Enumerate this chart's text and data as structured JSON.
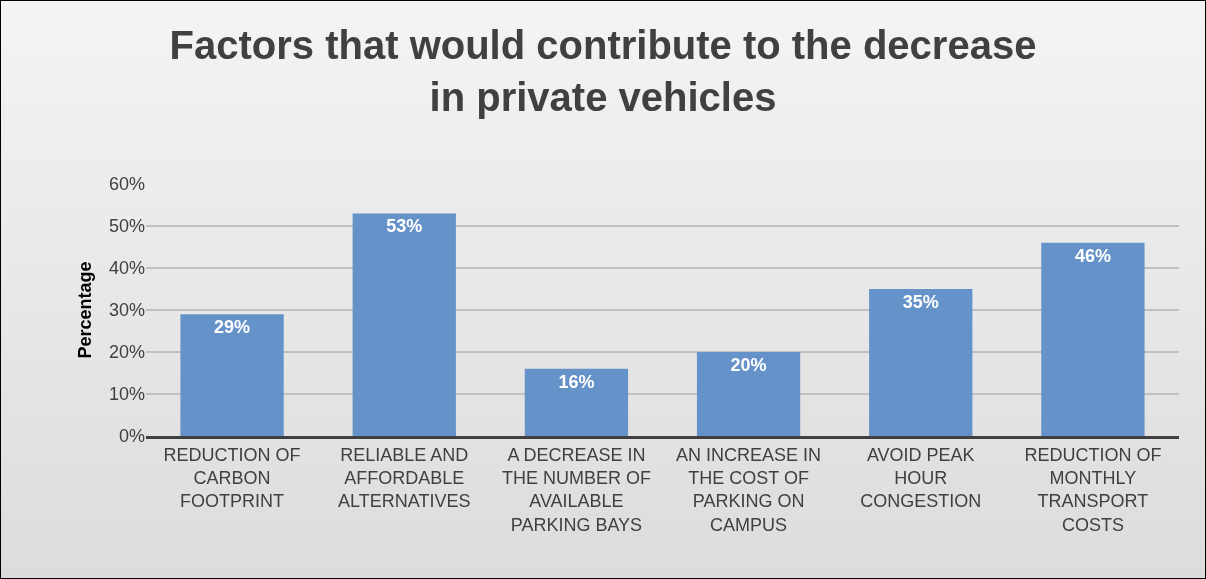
{
  "chart_data": {
    "type": "bar",
    "title": "Factors that would contribute to the decrease in private vehicles",
    "ylabel": "Percentage",
    "categories": [
      "REDUCTION OF CARBON FOOTPRINT",
      "RELIABLE AND AFFORDABLE ALTERNATIVES",
      "A DECREASE IN THE NUMBER OF AVAILABLE PARKING BAYS",
      "AN INCREASE IN THE COST OF PARKING ON CAMPUS",
      "AVOID PEAK HOUR CONGESTION",
      "REDUCTION OF MONTHLY TRANSPORT COSTS"
    ],
    "values": [
      29,
      53,
      16,
      20,
      35,
      46
    ],
    "value_labels": [
      "29%",
      "53%",
      "16%",
      "20%",
      "35%",
      "46%"
    ],
    "color": "#6592c9",
    "ylim": [
      0,
      60
    ],
    "yticks": [
      {
        "value": 0,
        "label": "0%"
      },
      {
        "value": 10,
        "label": "10%"
      },
      {
        "value": 20,
        "label": "20%"
      },
      {
        "value": 30,
        "label": "30%"
      },
      {
        "value": 40,
        "label": "40%"
      },
      {
        "value": 50,
        "label": "50%"
      },
      {
        "value": 60,
        "label": "60%"
      }
    ],
    "grid": "y"
  }
}
